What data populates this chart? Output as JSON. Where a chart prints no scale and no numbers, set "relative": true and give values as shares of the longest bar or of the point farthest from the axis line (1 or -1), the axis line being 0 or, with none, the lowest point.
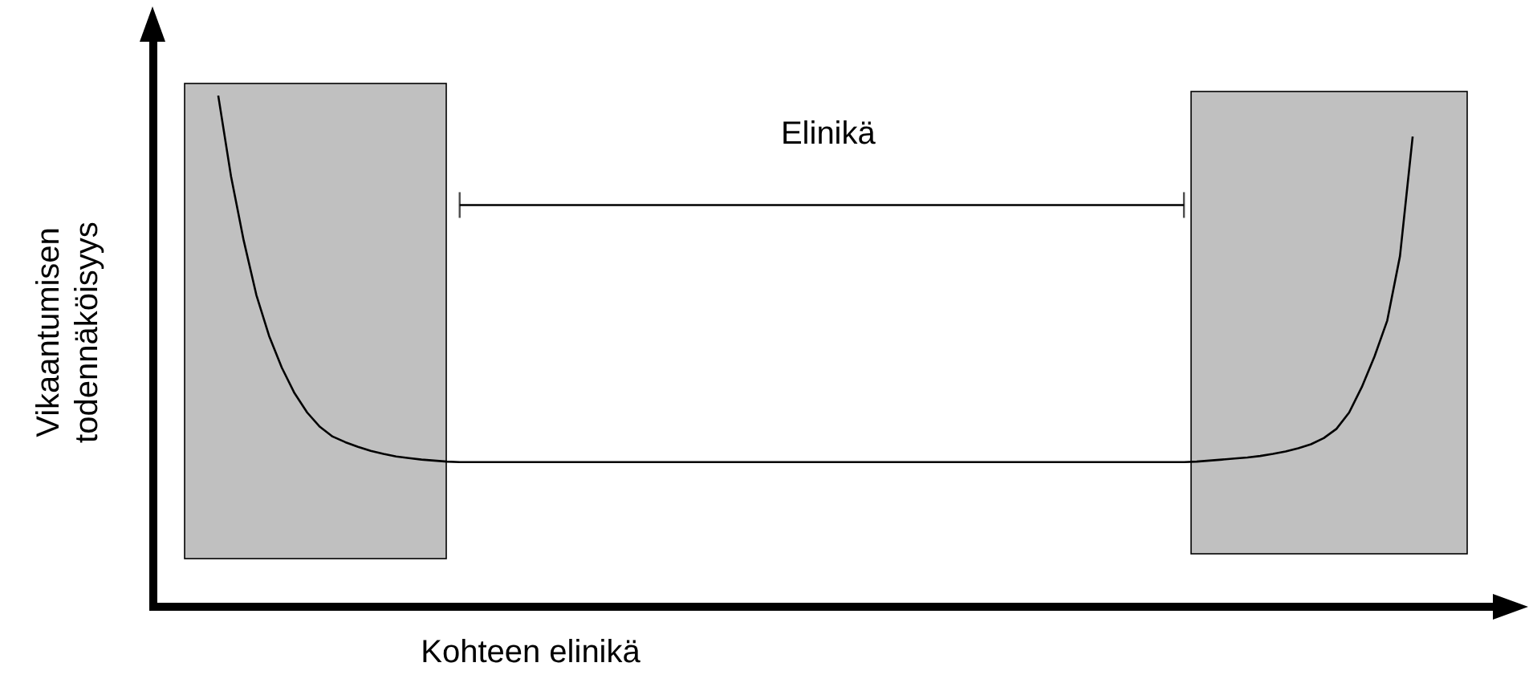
{
  "chart_data": {
    "type": "line",
    "relative": true,
    "xlabel": "Kohteen elinikä",
    "ylabel": "Vikaantumisen todennäköisyys",
    "line_style": "solid",
    "categories": [
      null,
      null,
      null,
      null,
      null,
      null,
      null,
      null,
      null,
      null,
      null,
      null,
      null,
      null,
      null,
      null,
      null,
      null,
      null,
      null,
      null,
      null,
      null,
      null,
      null,
      null,
      null,
      null,
      null,
      null,
      null,
      null,
      null,
      null,
      null,
      null,
      null,
      null,
      null,
      null,
      null,
      null,
      null,
      null,
      null,
      null,
      null,
      null,
      null,
      null,
      null,
      null,
      null,
      null,
      null,
      null,
      null,
      null,
      null,
      null,
      null,
      null,
      null,
      null,
      null,
      null,
      null,
      null,
      null,
      null,
      null,
      null,
      null,
      null,
      null,
      null,
      null,
      null,
      null,
      null,
      null,
      null,
      null,
      null,
      null,
      null,
      null,
      null,
      null,
      null,
      null,
      null,
      null,
      null,
      null
    ],
    "series": [
      {
        "color": "#000000",
        "values": [
          1.0,
          0.843,
          0.717,
          0.61,
          0.53,
          0.468,
          0.418,
          0.38,
          0.352,
          0.333,
          0.322,
          0.313,
          0.305,
          0.299,
          0.294,
          0.291,
          0.288,
          0.286,
          0.284,
          0.283,
          0.283,
          0.283,
          0.283,
          0.283,
          0.283,
          0.283,
          0.283,
          0.283,
          0.283,
          0.283,
          0.283,
          0.283,
          0.283,
          0.283,
          0.283,
          0.283,
          0.283,
          0.283,
          0.283,
          0.283,
          0.283,
          0.283,
          0.283,
          0.283,
          0.283,
          0.283,
          0.283,
          0.283,
          0.283,
          0.283,
          0.283,
          0.283,
          0.283,
          0.283,
          0.283,
          0.283,
          0.283,
          0.283,
          0.283,
          0.283,
          0.283,
          0.283,
          0.283,
          0.283,
          0.283,
          0.283,
          0.283,
          0.283,
          0.283,
          0.283,
          0.283,
          0.283,
          0.283,
          0.283,
          0.283,
          0.283,
          0.283,
          0.284,
          0.286,
          0.288,
          0.29,
          0.292,
          0.295,
          0.299,
          0.304,
          0.31,
          0.318,
          0.33,
          0.348,
          0.38,
          0.43,
          0.49,
          0.56,
          0.686,
          0.92
        ]
      },
      {
        "name": "Elinikä",
        "color": "#000000",
        "values": [
          null,
          null,
          null,
          null,
          null,
          null,
          null,
          null,
          null,
          null,
          null,
          null,
          null,
          null,
          null,
          null,
          null,
          null,
          null,
          0.786,
          0.786,
          0.786,
          0.786,
          0.786,
          0.786,
          0.786,
          0.786,
          0.786,
          0.786,
          0.786,
          0.786,
          0.786,
          0.786,
          0.786,
          0.786,
          0.786,
          0.786,
          0.786,
          0.786,
          0.786,
          0.786,
          0.786,
          0.786,
          0.786,
          0.786,
          0.786,
          0.786,
          0.786,
          0.786,
          0.786,
          0.786,
          0.786,
          0.786,
          0.786,
          0.786,
          0.786,
          0.786,
          0.786,
          0.786,
          0.786,
          0.786,
          0.786,
          0.786,
          0.786,
          0.786,
          0.786,
          0.786,
          0.786,
          0.786,
          0.786,
          0.786,
          0.786,
          0.786,
          0.786,
          0.786,
          0.786,
          0.786,
          null,
          null,
          null,
          null,
          null,
          null,
          null,
          null,
          null,
          null,
          null,
          null,
          null,
          null,
          null,
          null,
          null,
          null
        ]
      }
    ]
  }
}
